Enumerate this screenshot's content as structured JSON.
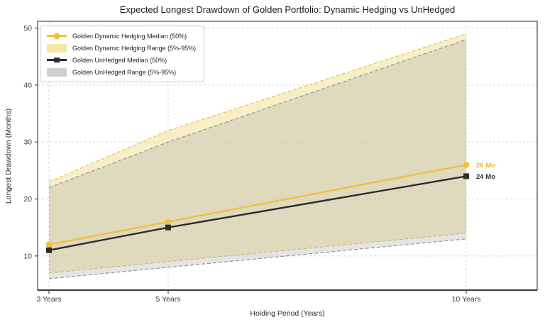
{
  "chart_data": {
    "type": "line",
    "title": "Expected Longest Drawdown of Golden Portfolio: Dynamic Hedging vs UnHedged",
    "xlabel": "Holding Period (Years)",
    "ylabel": "Longest Drawdown (Months)",
    "x": [
      3,
      5,
      10
    ],
    "xtick_labels": [
      "3 Years",
      "5 Years",
      "10 Years"
    ],
    "yticks": [
      10,
      20,
      30,
      40,
      50
    ],
    "xlim": [
      2.81,
      11.19
    ],
    "ylim": [
      4,
      51.2
    ],
    "grid": true,
    "legend_position": "upper-left",
    "series": [
      {
        "name": "Golden Dynamic Hedging Median (50%)",
        "kind": "line",
        "marker": "circle",
        "color": "#eec23f",
        "values": [
          12,
          16,
          26
        ]
      },
      {
        "name": "Golden Dynamic Hedging Range (5%-95%)",
        "kind": "band",
        "color": "#f0dc82",
        "edge_color": "#e2bd4a",
        "fill_opacity": 0.45,
        "lower": [
          7,
          9,
          14
        ],
        "upper": [
          23,
          32,
          49
        ]
      },
      {
        "name": "Golden UnHedged Median (50%)",
        "kind": "line",
        "marker": "square",
        "color": "#2d2d2d",
        "values": [
          11,
          15,
          24
        ]
      },
      {
        "name": "Golden UnHedged Range (5%-95%)",
        "kind": "band",
        "color": "#aaaaaa",
        "edge_color": "#8f8f8f",
        "fill_opacity": 0.32,
        "lower": [
          6,
          8,
          13
        ],
        "upper": [
          22,
          30,
          48
        ]
      }
    ],
    "annotations": [
      {
        "text": "26 Mo",
        "x": 10,
        "y": 26,
        "color": "#e2b440"
      },
      {
        "text": "24 Mo",
        "x": 10,
        "y": 24,
        "color": "#333333"
      }
    ]
  },
  "colors": {
    "background": "#ffffff",
    "grid": "#d7d7d7",
    "gold_accent": "#eec23f",
    "dark_accent": "#2d2d2d"
  }
}
